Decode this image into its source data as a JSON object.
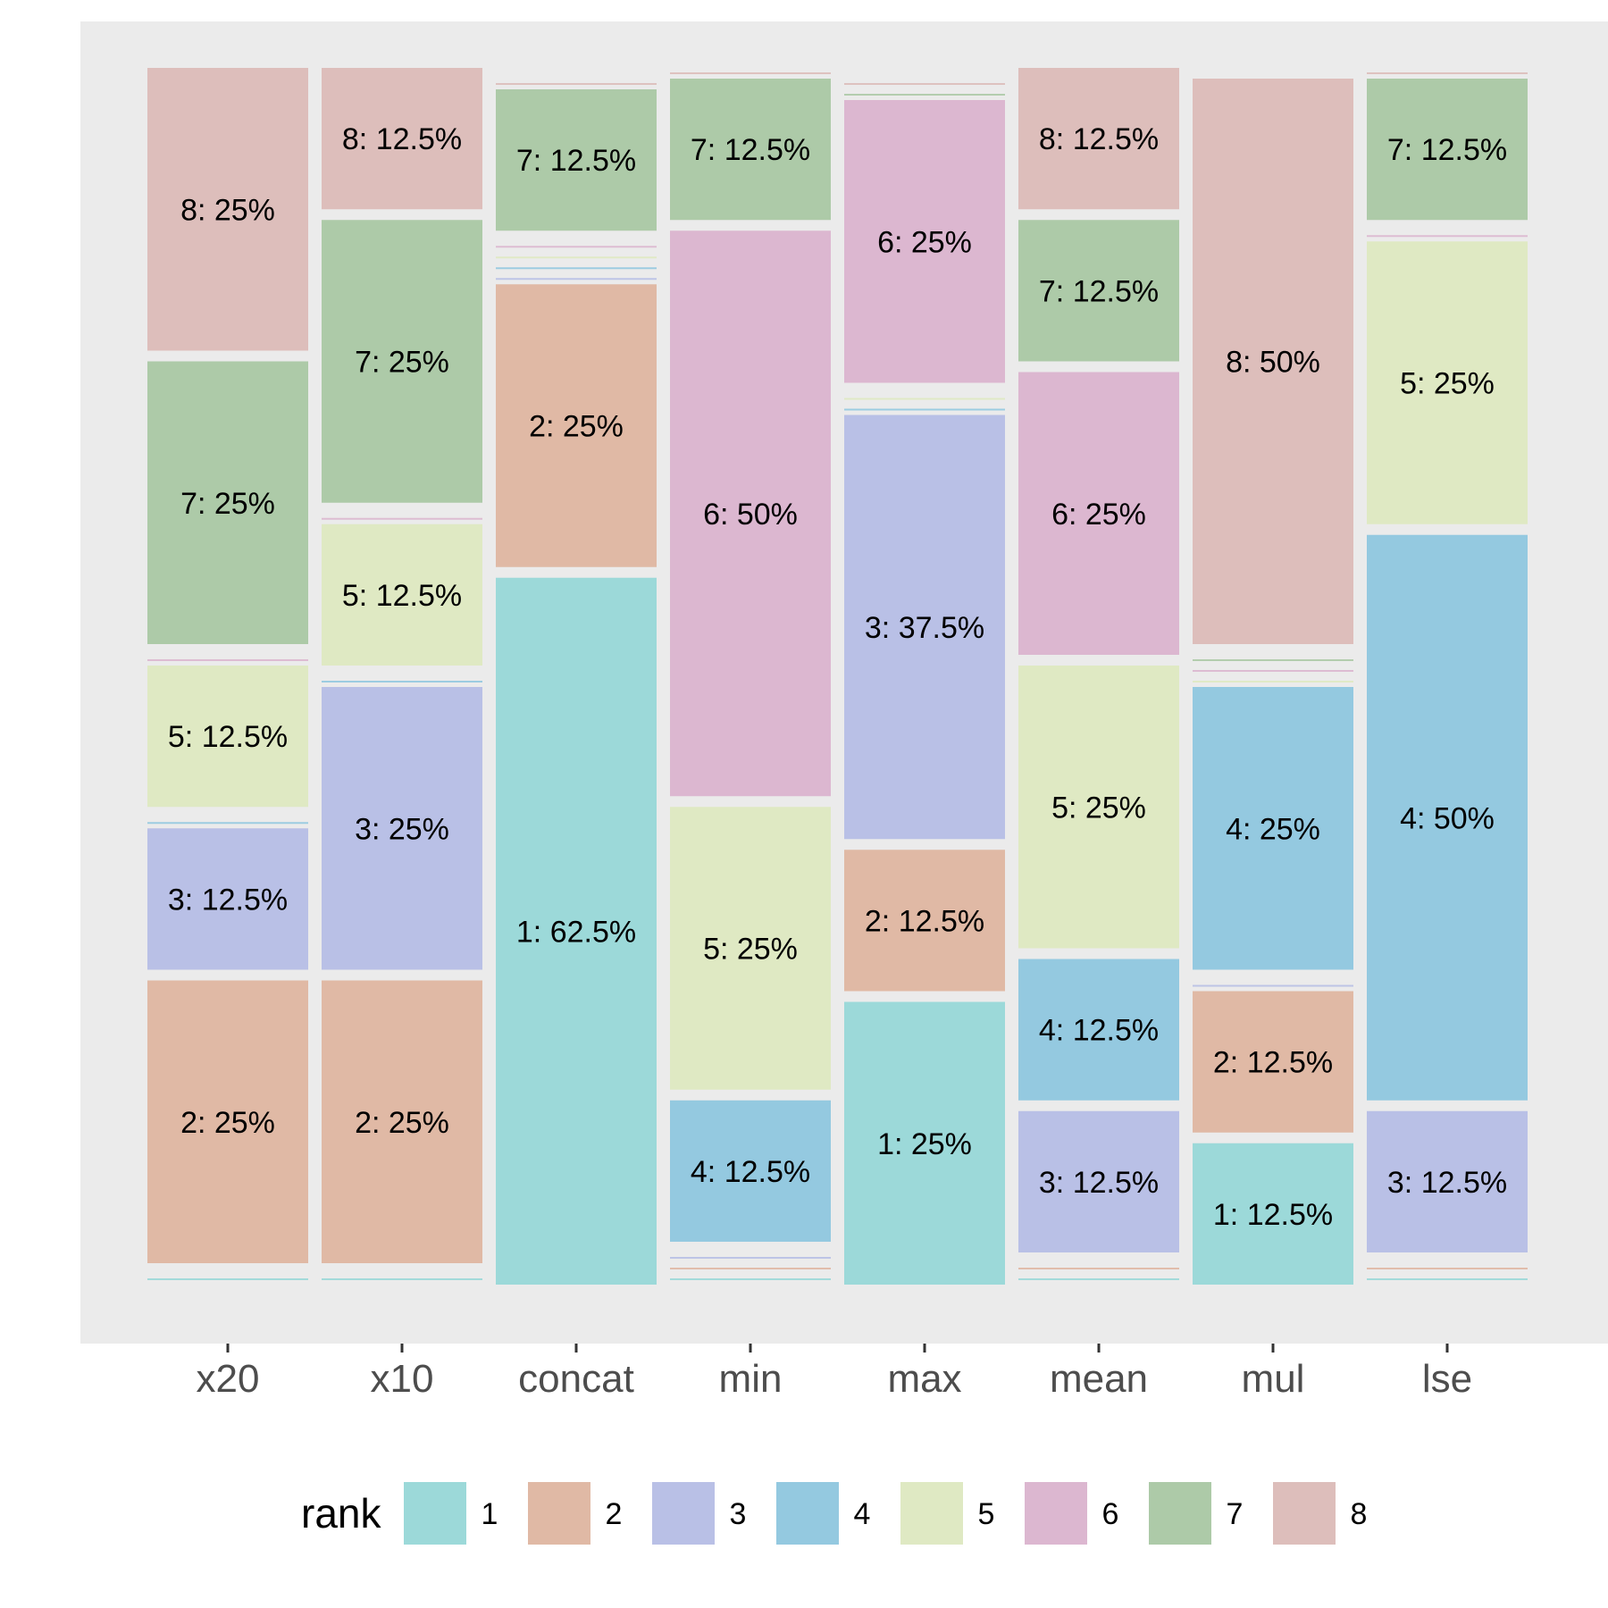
{
  "chart_data": {
    "type": "bar",
    "stacked": true,
    "percent": true,
    "categories": [
      "x20",
      "x10",
      "concat",
      "min",
      "max",
      "mean",
      "mul",
      "lse"
    ],
    "ylim": [
      0,
      100
    ],
    "grid": false,
    "legend": {
      "title": "rank",
      "position": "bottom",
      "entries": [
        "1",
        "2",
        "3",
        "4",
        "5",
        "6",
        "7",
        "8"
      ]
    },
    "colors": {
      "1": "#9cd9d9",
      "2": "#e0b9a5",
      "3": "#b9c0e6",
      "4": "#94c9e0",
      "5": "#dfe9c3",
      "6": "#dcb7d0",
      "7": "#adcaa8",
      "8": "#ddbebb"
    },
    "panel_background": "#ebebeb",
    "stack_order": [
      "1",
      "2",
      "3",
      "4",
      "5",
      "6",
      "7",
      "8"
    ],
    "series": [
      {
        "rank": "1",
        "values": [
          0,
          0,
          62.5,
          0,
          25,
          0,
          12.5,
          0
        ]
      },
      {
        "rank": "2",
        "values": [
          25,
          25,
          25,
          0,
          12.5,
          0,
          12.5,
          0
        ]
      },
      {
        "rank": "3",
        "values": [
          12.5,
          25,
          0,
          0,
          37.5,
          12.5,
          0,
          12.5
        ]
      },
      {
        "rank": "4",
        "values": [
          0,
          0,
          0,
          12.5,
          0,
          12.5,
          25,
          50
        ]
      },
      {
        "rank": "5",
        "values": [
          12.5,
          12.5,
          0,
          25,
          0,
          25,
          0,
          25
        ]
      },
      {
        "rank": "6",
        "values": [
          0,
          0,
          0,
          50,
          25,
          25,
          0,
          0
        ]
      },
      {
        "rank": "7",
        "values": [
          25,
          25,
          12.5,
          12.5,
          0,
          12.5,
          0,
          12.5
        ]
      },
      {
        "rank": "8",
        "values": [
          25,
          12.5,
          0,
          0,
          0,
          12.5,
          50,
          0
        ]
      }
    ],
    "value_labels": [
      [
        "8: 25%",
        "7: 25%",
        "5: 12.5%",
        "3: 12.5%",
        "2: 25%"
      ],
      [
        "8: 12.5%",
        "7: 25%",
        "5: 12.5%",
        "3: 25%",
        "2: 25%"
      ],
      [
        "7: 12.5%",
        "2: 25%",
        "1: 62.5%"
      ],
      [
        "7: 12.5%",
        "6: 50%",
        "5: 25%",
        "4: 12.5%"
      ],
      [
        "6: 25%",
        "3: 37.5%",
        "2: 12.5%",
        "1: 25%"
      ],
      [
        "8: 12.5%",
        "7: 12.5%",
        "6: 25%",
        "5: 25%",
        "4: 12.5%",
        "3: 12.5%"
      ],
      [
        "8: 50%",
        "4: 25%",
        "2: 12.5%",
        "1: 12.5%"
      ],
      [
        "7: 12.5%",
        "5: 25%",
        "4: 50%",
        "3: 12.5%"
      ]
    ]
  }
}
